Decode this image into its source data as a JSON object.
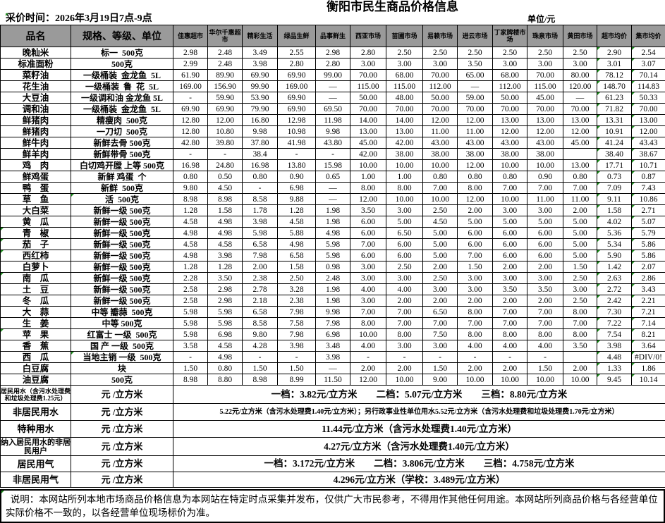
{
  "title": "衡阳市民生商品价格信息",
  "meta": {
    "collect_time": "采价时间：2026年3月19日7点-9点",
    "unit": "单位/元"
  },
  "colors": {
    "header_bg": "#9a9a9a",
    "border": "#000000",
    "formula_corner_green": "#1e8f1e"
  },
  "table": {
    "product_col_header": "品名",
    "spec_col_header": "规格、等级、单位",
    "price_col_headers": [
      "佳惠超市",
      "华尔千惠超 市",
      "精彩生活",
      "绿品生鲜",
      "品事鲜生",
      "西亚市场",
      "苗圃市场",
      "易赖市场",
      "进云市场",
      "丁家牌楼市场",
      "珠泉市场",
      "黄田市场",
      "超市均价",
      "集市均价"
    ],
    "rows": [
      {
        "name": "晚籼米",
        "spec": "标一  500克",
        "prices": [
          "2.98",
          "2.48",
          "3.49",
          "2.55",
          "2.98",
          "2.80",
          "2.50",
          "2.50",
          "2.50",
          "2.50",
          "2.50",
          "2.50"
        ],
        "super_avg": "2.90",
        "market_avg": "2.54"
      },
      {
        "name": "标准面粉",
        "spec": "500克",
        "prices": [
          "2.99",
          "2.48",
          "3.98",
          "2.80",
          "2.80",
          "3.00",
          "3.00",
          "3.00",
          "3.50",
          "3.00",
          "3.00",
          "3.00"
        ],
        "super_avg": "3.01",
        "market_avg": "3.07"
      },
      {
        "name": "菜籽油",
        "spec": "一级桶装  金龙鱼  5L",
        "prices": [
          "61.90",
          "89.90",
          "69.90",
          "69.90",
          "99.00",
          "70.00",
          "68.00",
          "70.00",
          "65.00",
          "68.00",
          "70.00",
          "80.00"
        ],
        "super_avg": "78.12",
        "market_avg": "70.14"
      },
      {
        "name": "花生油",
        "spec": "一级桶装  鲁  花  5L",
        "prices": [
          "169.00",
          "156.90",
          "99.90",
          "169.00",
          "—",
          "115.00",
          "115.00",
          "112.00",
          "—",
          "112.00",
          "115.00",
          "120.00"
        ],
        "super_avg": "148.70",
        "market_avg": "114.83"
      },
      {
        "name": "大豆油",
        "spec": "一级调和油 金龙鱼 5L",
        "prices": [
          "-",
          "59.90",
          "53.90",
          "69.90",
          "—",
          "50.00",
          "48.00",
          "50.00",
          "59.00",
          "50.00",
          "45.00",
          "—"
        ],
        "super_avg": "61.23",
        "market_avg": "50.33"
      },
      {
        "name": "调和油",
        "spec": "一级桶装  金龙鱼  5L",
        "prices": [
          "69.90",
          "69.90",
          "79.90",
          "69.90",
          "69.50",
          "70.00",
          "70.00",
          "70.00",
          "70.00",
          "70.00",
          "70.00",
          "70.00"
        ],
        "super_avg": "71.82",
        "market_avg": "70.00"
      },
      {
        "name": "鲜猪肉",
        "spec": "精瘦肉  500克",
        "prices": [
          "12.80",
          "12.00",
          "16.80",
          "12.98",
          "11.98",
          "14.00",
          "14.00",
          "12.00",
          "12.00",
          "13.00",
          "13.00",
          "13.00"
        ],
        "super_avg": "13.31",
        "market_avg": "13.00"
      },
      {
        "name": "鲜猪肉",
        "spec": "一刀切  500克",
        "prices": [
          "12.80",
          "10.80",
          "9.98",
          "10.98",
          "9.98",
          "13.00",
          "13.00",
          "11.00",
          "11.00",
          "12.00",
          "12.00",
          "12.00"
        ],
        "super_avg": "10.91",
        "market_avg": "12.00"
      },
      {
        "name": "鲜牛肉",
        "spec": "新鲜去骨 500克",
        "prices": [
          "42.80",
          "39.80",
          "37.80",
          "41.98",
          "43.80",
          "45.00",
          "42.00",
          "43.00",
          "43.00",
          "43.00",
          "43.00",
          "45.00"
        ],
        "super_avg": "41.24",
        "market_avg": "43.43"
      },
      {
        "name": "鲜羊肉",
        "spec": "新鲜带骨 500克",
        "prices": [
          "-",
          "-",
          "38.4",
          "-",
          "-",
          "42.00",
          "38.00",
          "38.00",
          "38.00",
          "38.00",
          "38.00",
          ""
        ],
        "super_avg": "38.40",
        "market_avg": "38.67"
      },
      {
        "name": "鸡　肉",
        "spec": "白切鸡开膛 上等 500克",
        "prices": [
          "16.98",
          "24.80",
          "16.98",
          "13.80",
          "15.98",
          "10.00",
          "10.00",
          "10.00",
          "12.00",
          "10.00",
          "10.00",
          "13.00"
        ],
        "super_avg": "17.71",
        "market_avg": "10.71"
      },
      {
        "name": "鲜鸡蛋",
        "spec": "新鲜 鸡蛋  个",
        "prices": [
          "0.80",
          "0.50",
          "0.80",
          "0.90",
          "0.65",
          "1.00",
          "1.00",
          "0.80",
          "0.80",
          "0.80",
          "0.90",
          "0.80"
        ],
        "super_avg": "0.73",
        "market_avg": "0.87"
      },
      {
        "name": "鸭　蛋",
        "spec": "新鲜  500克",
        "prices": [
          "9.80",
          "4.50",
          "-",
          "6.98",
          "—",
          "8.00",
          "8.00",
          "7.00",
          "8.00",
          "7.00",
          "7.00",
          "7.00"
        ],
        "super_avg": "7.09",
        "market_avg": "7.43"
      },
      {
        "name": "草　鱼",
        "spec": "活  500克",
        "spec_g": true,
        "prices": [
          "8.98",
          "8.98",
          "8.58",
          "9.88",
          "—",
          "12.00",
          "10.00",
          "10.00",
          "12.00",
          "10.00",
          "11.00",
          "11.00"
        ],
        "super_avg": "9.11",
        "market_avg": "10.86"
      },
      {
        "name": "大白菜",
        "spec": "新鲜一级 500克",
        "prices": [
          "1.28",
          "1.58",
          "1.78",
          "1.28",
          "1.98",
          "3.50",
          "3.00",
          "2.50",
          "2.00",
          "3.00",
          "3.00",
          "2.00"
        ],
        "super_avg": "1.58",
        "market_avg": "2.71"
      },
      {
        "name": "黄　瓜",
        "spec": "新鲜一级 500克",
        "prices": [
          "4.58",
          "4.98",
          "3.98",
          "4.58",
          "1.98",
          "6.00",
          "5.00",
          "4.50",
          "5.00",
          "5.00",
          "5.00",
          "5.00"
        ],
        "super_avg": "4.02",
        "market_avg": "5.07"
      },
      {
        "name": "青　椒",
        "spec": "新鲜一级 500克",
        "name_g": true,
        "prices": [
          "4.98",
          "4.98",
          "5.98",
          "5.88",
          "4.98",
          "6.00",
          "6.50",
          "5.00",
          "6.00",
          "6.00",
          "6.00",
          "5.00"
        ],
        "super_avg": "5.36",
        "market_avg": "5.79"
      },
      {
        "name": "茄　子",
        "spec": "新鲜一级 500克",
        "name_g": true,
        "prices": [
          "4.58",
          "4.58",
          "6.58",
          "4.98",
          "5.98",
          "7.00",
          "6.00",
          "5.00",
          "6.00",
          "6.00",
          "6.00",
          "5.00"
        ],
        "super_avg": "5.34",
        "market_avg": "5.86"
      },
      {
        "name": "西红柿",
        "spec": "新鲜一级 500克",
        "name_g": true,
        "prices": [
          "4.98",
          "3.98",
          "7.98",
          "6.58",
          "5.98",
          "6.00",
          "6.00",
          "5.00",
          "7.00",
          "6.00",
          "6.00",
          "5.00"
        ],
        "super_avg": "5.90",
        "market_avg": "5.86"
      },
      {
        "name": "白萝卜",
        "spec": "新鲜一级 500克",
        "prices": [
          "1.28",
          "1.28",
          "2.00",
          "1.58",
          "0.98",
          "3.00",
          "2.50",
          "2.00",
          "1.50",
          "2.00",
          "2.00",
          "1.50"
        ],
        "super_avg": "1.42",
        "market_avg": "2.07"
      },
      {
        "name": "南　瓜",
        "spec": "新鲜一级 500克",
        "name_g": true,
        "prices": [
          "2.28",
          "3.50",
          "2.38",
          "2.50",
          "2.48",
          "3.00",
          "3.00",
          "2.50",
          "3.00",
          "3.00",
          "3.00",
          "2.50"
        ],
        "super_avg": "2.63",
        "market_avg": "2.86"
      },
      {
        "name": "土　豆",
        "spec": "新鲜一级 500克",
        "prices": [
          "2.58",
          "2.98",
          "2.78",
          "3.28",
          "1.98",
          "4.00",
          "4.00",
          "3.00",
          "3.00",
          "3.50",
          "3.50",
          "3.00"
        ],
        "super_avg": "2.72",
        "market_avg": "3.43"
      },
      {
        "name": "冬　瓜",
        "spec": "新鲜一级 500克",
        "prices": [
          "2.58",
          "2.98",
          "2.18",
          "2.38",
          "1.98",
          "3.00",
          "2.00",
          "2.00",
          "2.00",
          "2.00",
          "2.00",
          "2.50"
        ],
        "super_avg": "2.42",
        "market_avg": "2.21"
      },
      {
        "name": "大　蒜",
        "spec": "中等 瓣蒜  500克",
        "prices": [
          "5.98",
          "5.98",
          "6.58",
          "7.98",
          "9.98",
          "7.00",
          "7.00",
          "6.50",
          "8.00",
          "7.00",
          "7.00",
          "8.00"
        ],
        "super_avg": "7.30",
        "market_avg": "7.21"
      },
      {
        "name": "生　姜",
        "spec": "中等 500克",
        "prices": [
          "5.98",
          "5.98",
          "8.58",
          "7.58",
          "7.98",
          "8.00",
          "7.00",
          "7.00",
          "7.00",
          "7.00",
          "7.00",
          "7.00"
        ],
        "super_avg": "7.22",
        "market_avg": "7.14"
      },
      {
        "name": "苹　果",
        "spec": "红富士 一级  500克",
        "name_g": true,
        "prices": [
          "5.98",
          "6.98",
          "9.80",
          "7.98",
          "6.98",
          "10.00",
          "8.00",
          "7.50",
          "8.00",
          "8.00",
          "8.00",
          "8.00"
        ],
        "super_avg": "7.54",
        "market_avg": "8.21"
      },
      {
        "name": "香　蕉",
        "spec": "国 产 一级  500克",
        "prices": [
          "3.58",
          "4.58",
          "4.28",
          "3.98",
          "3.48",
          "4.00",
          "3.00",
          "3.00",
          "4.00",
          "4.00",
          "4.00",
          "3.50"
        ],
        "super_avg": "3.98",
        "market_avg": "3.64"
      },
      {
        "name": "西　瓜",
        "spec": "当地主销 一级  500克",
        "spec_g": true,
        "prices": [
          "-",
          "4.98",
          "-",
          "-",
          "3.98",
          "-",
          "-",
          "-",
          "-",
          "-",
          "-",
          ""
        ],
        "super_avg": "4.48",
        "market_avg": "#DIV/0!"
      },
      {
        "name": "白豆腐",
        "spec": "块",
        "prices": [
          "1.50",
          "0.80",
          "1.50",
          "1.50",
          "—",
          "2.00",
          "2.00",
          "1.50",
          "2.00",
          "2.00",
          "1.50",
          "2.00"
        ],
        "super_avg": "1.33",
        "market_avg": "1.86"
      },
      {
        "name": "油豆腐",
        "spec": "500克",
        "prices": [
          "8.98",
          "8.80",
          "8.98",
          "8.99",
          "11.50",
          "12.00",
          "10.00",
          "9.00",
          "10.00",
          "10.00",
          "10.00",
          "10.00"
        ],
        "super_avg": "9.45",
        "market_avg": "10.14"
      }
    ],
    "utility_rows": [
      {
        "name": "居民用水（含污水处理费和垃圾处理费1.25元）",
        "unit": "元 /立方米",
        "value": "一档：3.82元/立方米　　二档：5.07元/立方米　　三档：8.80元/立方米"
      },
      {
        "name": "非居民用水",
        "unit": "元 /立方米",
        "value": "5.22元/立方米（含污水处理费1.40元/立方米）；另行政事业性单位用水5.52元/立方米（含污水处理费和垃圾处理费1.70元/立方米）"
      },
      {
        "name": "特种用水",
        "unit": "元 /立方米",
        "value": "11.44元/立方米（含污水处理费1.40元/立方米）"
      },
      {
        "name": "纳入居民用水的非居民用户",
        "unit": "元 /立方米",
        "value": "4.27元/立方米（含污水处理费1.40元/立方米）"
      },
      {
        "name": "居民用气",
        "unit": "元 /立方米",
        "value": "一档：3.172元/立方米　　二档：3.806元/立方米　　三档：4.758元/立方米"
      },
      {
        "name": "非居民用气",
        "unit": "元 /立方米",
        "value": "4.296元/立方米（学校：3.489元/立方米）"
      }
    ],
    "note": "  说明：本网站所列本地市场商品价格信息为本网站在特定时点采集并发布，仅供广大市民参考，不得用作其他任何用途。本网站所列商品价格与各经营单位实际价格不一致的，以各经营单位现场标价为准。"
  }
}
